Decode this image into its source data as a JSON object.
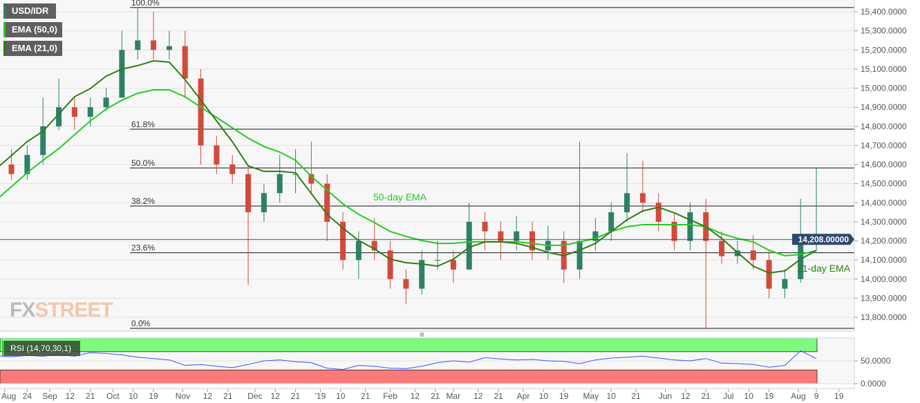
{
  "legend": {
    "symbol": "USD/IDR",
    "ema50": "EMA (50,0)",
    "ema21": "EMA (21,0)",
    "rsi": "RSI (14,70,30,1)"
  },
  "watermark": {
    "part1": "FX",
    "part2": "STREET"
  },
  "annotations": {
    "ema50_label": "50-day EMA",
    "ema21_label": "21-day EMA"
  },
  "colors": {
    "bull": "#2e8068",
    "bear": "#d24a3c",
    "ema50": "#22cc22",
    "ema21": "#2f7d12",
    "rsi_line": "#3355ff",
    "overbought": "#7dfa7d",
    "oversold": "#fa7a7a",
    "price_tag": "#2c4a6e",
    "background": "#f7f7f7"
  },
  "chart_data": {
    "type": "candlestick",
    "title": "USD/IDR",
    "current_price": "14,208.00000",
    "current_value": 14208,
    "ylim": [
      13742,
      15422
    ],
    "grid": true,
    "y_ticks": [
      "15,400.0000",
      "15,300.0000",
      "15,200.0000",
      "15,100.0000",
      "15,000.0000",
      "14,900.0000",
      "14,800.0000",
      "14,700.0000",
      "14,600.0000",
      "14,500.0000",
      "14,400.0000",
      "14,300.0000",
      "14,200.0000",
      "14,100.0000",
      "14,000.0000",
      "13,900.0000",
      "13,800.0000"
    ],
    "y_tick_values": [
      15400,
      15300,
      15200,
      15100,
      15000,
      14900,
      14800,
      14700,
      14600,
      14500,
      14400,
      14300,
      14200,
      14100,
      14000,
      13900,
      13800
    ],
    "x_ticks": [
      {
        "label": "Aug",
        "date": "2018-08-14"
      },
      {
        "label": "24",
        "date": "2018-08-24"
      },
      {
        "label": "Sep",
        "date": "2018-09-03"
      },
      {
        "label": "12",
        "date": "2018-09-12"
      },
      {
        "label": "21",
        "date": "2018-09-21"
      },
      {
        "label": "Oct",
        "date": "2018-10-01"
      },
      {
        "label": "10",
        "date": "2018-10-10"
      },
      {
        "label": "19",
        "date": "2018-10-19"
      },
      {
        "label": "Nov",
        "date": "2018-11-01"
      },
      {
        "label": "12",
        "date": "2018-11-12"
      },
      {
        "label": "21",
        "date": "2018-11-21"
      },
      {
        "label": "Dec",
        "date": "2018-12-03"
      },
      {
        "label": "12",
        "date": "2018-12-12"
      },
      {
        "label": "21",
        "date": "2018-12-21"
      },
      {
        "label": "'19",
        "date": "2019-01-01"
      },
      {
        "label": "10",
        "date": "2019-01-10"
      },
      {
        "label": "21",
        "date": "2019-01-21"
      },
      {
        "label": "Feb",
        "date": "2019-02-01"
      },
      {
        "label": "12",
        "date": "2019-02-12"
      },
      {
        "label": "21",
        "date": "2019-02-21"
      },
      {
        "label": "Mar",
        "date": "2019-03-01"
      },
      {
        "label": "12",
        "date": "2019-03-12"
      },
      {
        "label": "21",
        "date": "2019-03-21"
      },
      {
        "label": "Apr",
        "date": "2019-04-01"
      },
      {
        "label": "10",
        "date": "2019-04-10"
      },
      {
        "label": "19",
        "date": "2019-04-19"
      },
      {
        "label": "May",
        "date": "2019-05-01"
      },
      {
        "label": "10",
        "date": "2019-05-10"
      },
      {
        "label": "21",
        "date": "2019-05-21"
      },
      {
        "label": "Jun",
        "date": "2019-06-03"
      },
      {
        "label": "12",
        "date": "2019-06-12"
      },
      {
        "label": "21",
        "date": "2019-06-21"
      },
      {
        "label": "Jul",
        "date": "2019-07-01"
      },
      {
        "label": "10",
        "date": "2019-07-10"
      },
      {
        "label": "19",
        "date": "2019-07-19"
      },
      {
        "label": "Aug",
        "date": "2019-08-01"
      },
      {
        "label": "9",
        "date": "2019-08-09"
      },
      {
        "label": "19",
        "date": "2019-08-19"
      }
    ],
    "fib_levels": [
      {
        "label": "100.0%",
        "value": 15422
      },
      {
        "label": "61.8%",
        "value": 14785
      },
      {
        "label": "50.0%",
        "value": 14582
      },
      {
        "label": "38.2%",
        "value": 14383
      },
      {
        "label": "23.6%",
        "value": 14138
      },
      {
        "label": "0.0%",
        "value": 13742
      }
    ],
    "candles": [
      [
        "2018-08-10",
        14500,
        14650,
        14450,
        14600
      ],
      [
        "2018-08-17",
        14600,
        14680,
        14520,
        14550
      ],
      [
        "2018-08-24",
        14550,
        14700,
        14520,
        14650
      ],
      [
        "2018-08-31",
        14650,
        14950,
        14600,
        14800
      ],
      [
        "2018-09-07",
        14800,
        15050,
        14780,
        14900
      ],
      [
        "2018-09-14",
        14900,
        14950,
        14780,
        14850
      ],
      [
        "2018-09-21",
        14850,
        14950,
        14800,
        14900
      ],
      [
        "2018-09-28",
        14900,
        15000,
        14880,
        14950
      ],
      [
        "2018-10-05",
        14950,
        15300,
        14950,
        15200
      ],
      [
        "2018-10-12",
        15200,
        15420,
        15150,
        15250
      ],
      [
        "2018-10-19",
        15250,
        15400,
        15150,
        15200
      ],
      [
        "2018-10-26",
        15200,
        15300,
        15150,
        15220
      ],
      [
        "2018-11-02",
        15220,
        15300,
        14950,
        15050
      ],
      [
        "2018-11-09",
        15050,
        15100,
        14600,
        14700
      ],
      [
        "2018-11-16",
        14700,
        14750,
        14550,
        14600
      ],
      [
        "2018-11-23",
        14600,
        14650,
        14500,
        14550
      ],
      [
        "2018-11-30",
        14550,
        14600,
        13970,
        14350
      ],
      [
        "2018-12-07",
        14350,
        14500,
        14300,
        14450
      ],
      [
        "2018-12-14",
        14450,
        14650,
        14400,
        14550
      ],
      [
        "2018-12-21",
        14550,
        14680,
        14450,
        14550
      ],
      [
        "2018-12-28",
        14550,
        14720,
        14450,
        14500
      ],
      [
        "2019-01-04",
        14500,
        14550,
        14200,
        14300
      ],
      [
        "2019-01-11",
        14300,
        14350,
        14050,
        14100
      ],
      [
        "2019-01-18",
        14100,
        14250,
        14000,
        14200
      ],
      [
        "2019-01-25",
        14200,
        14320,
        14100,
        14150
      ],
      [
        "2019-02-01",
        14150,
        14200,
        13950,
        14000
      ],
      [
        "2019-02-08",
        14000,
        14050,
        13870,
        13950
      ],
      [
        "2019-02-15",
        13950,
        14150,
        13920,
        14100
      ],
      [
        "2019-02-22",
        14100,
        14200,
        14050,
        14100
      ],
      [
        "2019-03-01",
        14100,
        14150,
        13980,
        14050
      ],
      [
        "2019-03-08",
        14050,
        14400,
        14050,
        14300
      ],
      [
        "2019-03-15",
        14300,
        14350,
        14150,
        14250
      ],
      [
        "2019-03-22",
        14250,
        14300,
        14100,
        14200
      ],
      [
        "2019-03-29",
        14200,
        14330,
        14150,
        14250
      ],
      [
        "2019-04-05",
        14250,
        14300,
        14100,
        14150
      ],
      [
        "2019-04-12",
        14150,
        14280,
        14100,
        14200
      ],
      [
        "2019-04-19",
        14200,
        14250,
        13980,
        14050
      ],
      [
        "2019-04-26",
        14050,
        14720,
        14000,
        14200
      ],
      [
        "2019-05-03",
        14200,
        14320,
        14150,
        14250
      ],
      [
        "2019-05-10",
        14250,
        14400,
        14200,
        14350
      ],
      [
        "2019-05-17",
        14350,
        14660,
        14300,
        14450
      ],
      [
        "2019-05-24",
        14450,
        14620,
        14350,
        14400
      ],
      [
        "2019-05-31",
        14400,
        14450,
        14250,
        14300
      ],
      [
        "2019-06-07",
        14300,
        14350,
        14150,
        14200
      ],
      [
        "2019-06-14",
        14200,
        14400,
        14150,
        14350
      ],
      [
        "2019-06-21",
        14350,
        14420,
        13742,
        14200
      ],
      [
        "2019-06-28",
        14200,
        14250,
        14080,
        14120
      ],
      [
        "2019-07-05",
        14120,
        14200,
        14080,
        14150
      ],
      [
        "2019-07-12",
        14150,
        14230,
        14050,
        14100
      ],
      [
        "2019-07-19",
        14100,
        14150,
        13900,
        13950
      ],
      [
        "2019-07-26",
        13950,
        14050,
        13900,
        14000
      ],
      [
        "2019-08-02",
        14000,
        14420,
        13980,
        14200
      ],
      [
        "2019-08-09",
        14200,
        14580,
        14150,
        14208
      ]
    ],
    "ema21": [
      14575,
      14647,
      14720,
      14774,
      14864,
      14955,
      14998,
      15063,
      15100,
      15118,
      15143,
      15136,
      15045,
      14937,
      14828,
      14719,
      14593,
      14564,
      14564,
      14557,
      14448,
      14339,
      14267,
      14202,
      14158,
      14104,
      14086,
      14079,
      14068,
      14104,
      14166,
      14195,
      14195,
      14187,
      14166,
      14140,
      14122,
      14151,
      14187,
      14249,
      14310,
      14357,
      14376,
      14347,
      14310,
      14274,
      14213,
      14140,
      14068,
      14032,
      14043,
      14104,
      14150
    ],
    "ema50": [
      14412,
      14484,
      14557,
      14622,
      14683,
      14756,
      14828,
      14890,
      14937,
      14973,
      14991,
      14991,
      14955,
      14900,
      14846,
      14792,
      14738,
      14694,
      14665,
      14622,
      14538,
      14466,
      14394,
      14339,
      14296,
      14249,
      14224,
      14202,
      14187,
      14187,
      14195,
      14195,
      14195,
      14195,
      14187,
      14177,
      14177,
      14195,
      14213,
      14249,
      14274,
      14285,
      14285,
      14285,
      14285,
      14274,
      14238,
      14213,
      14195,
      14151,
      14122,
      14129,
      14150
    ],
    "rsi": {
      "label": "RSI (14,70,30,1)",
      "upper": 70,
      "lower": 30,
      "ylim": [
        0,
        100
      ],
      "y_ticks": [
        "50.0000",
        "0.0000"
      ],
      "y_tick_values": [
        50,
        0
      ],
      "values": [
        61,
        59,
        62,
        60,
        64,
        60,
        68,
        66,
        63,
        58,
        55,
        52,
        40,
        42,
        38,
        35,
        42,
        50,
        52,
        48,
        46,
        34,
        31,
        40,
        38,
        34,
        33,
        38,
        46,
        50,
        47,
        57,
        54,
        52,
        53,
        50,
        49,
        44,
        52,
        56,
        58,
        60,
        56,
        52,
        50,
        55,
        45,
        44,
        42,
        36,
        40,
        72,
        55
      ]
    }
  }
}
